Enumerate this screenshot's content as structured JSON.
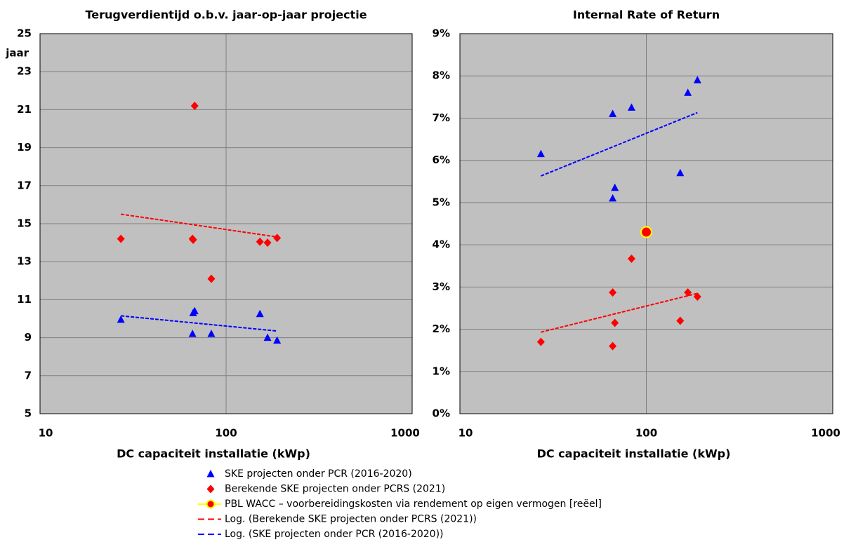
{
  "chart_data": [
    {
      "type": "scatter",
      "title": "Terugverdientijd o.b.v. jaar-op-jaar projectie",
      "xlabel": "DC capaciteit installatie (kWp)",
      "ylabel": "jaar",
      "xscale": "log",
      "xlim": [
        10,
        1000
      ],
      "xticks": [
        10,
        100,
        1000
      ],
      "ylim": [
        5,
        25
      ],
      "yticks": [
        5,
        7,
        9,
        11,
        13,
        15,
        17,
        19,
        21,
        23,
        25
      ],
      "grid": true,
      "background": "#c0c0c0",
      "series": [
        {
          "color": "#0000ff",
          "marker": "triangle",
          "x": [
            27.2,
            66,
            67.8,
            66.5,
            83.3,
            152,
            167,
            188
          ],
          "values": [
            9.95,
            9.2,
            10.4,
            10.3,
            9.2,
            10.25,
            9.0,
            8.85
          ]
        },
        {
          "color": "#ff0000",
          "marker": "diamond",
          "x": [
            27.2,
            66,
            66.5,
            67.8,
            83.3,
            152,
            167,
            188
          ],
          "values": [
            14.2,
            14.2,
            14.15,
            21.2,
            12.1,
            14.05,
            14.0,
            14.25
          ]
        },
        {
          "color": "#ff0000",
          "marker": "dashed",
          "x": [
            27.2,
            188
          ],
          "values": [
            15.5,
            14.3
          ]
        },
        {
          "color": "#0000ff",
          "marker": "dashed",
          "x": [
            27.2,
            188
          ],
          "values": [
            10.15,
            9.35
          ]
        }
      ]
    },
    {
      "type": "scatter",
      "title": "Internal Rate of Return",
      "xlabel": "DC capaciteit installatie (kWp)",
      "xscale": "log",
      "xlim": [
        10,
        1000
      ],
      "xticks": [
        10,
        100,
        1000
      ],
      "ylim": [
        0,
        9
      ],
      "yticks": [
        {
          "value": 0,
          "label": "0%"
        },
        {
          "value": 1,
          "label": "1%"
        },
        {
          "value": 2,
          "label": "2%"
        },
        {
          "value": 3,
          "label": "3%"
        },
        {
          "value": 4,
          "label": "4%"
        },
        {
          "value": 5,
          "label": "5%"
        },
        {
          "value": 6,
          "label": "6%"
        },
        {
          "value": 7,
          "label": "7%"
        },
        {
          "value": 8,
          "label": "8%"
        },
        {
          "value": 9,
          "label": "9%"
        }
      ],
      "grid": true,
      "background": "#c0c0c0",
      "series": [
        {
          "name": "SKE projecten onder PCR (2016-2020)",
          "color": "#0000ff",
          "marker": "triangle",
          "x": [
            27.2,
            66,
            66,
            67.8,
            83.3,
            152,
            167,
            188
          ],
          "values": [
            6.15,
            7.1,
            5.1,
            5.35,
            7.25,
            5.7,
            7.6,
            7.9
          ]
        },
        {
          "name": "Berekende SKE projecten onder PCRS (2021)",
          "color": "#ff0000",
          "marker": "diamond",
          "x": [
            27.2,
            66,
            66,
            67.8,
            83.3,
            152,
            167,
            188
          ],
          "values": [
            1.7,
            2.87,
            1.6,
            2.15,
            3.67,
            2.2,
            2.87,
            2.77
          ]
        },
        {
          "name": "PBL WACC – voorbereidingskosten via rendement op eigen vermogen [reëel]",
          "color": "#ff0000",
          "edgecolor": "#ffff00",
          "marker": "circle",
          "x": [
            100
          ],
          "values": [
            4.3
          ]
        },
        {
          "name": "Log. (Berekende SKE projecten onder PCRS (2021))",
          "color": "#ff0000",
          "marker": "dashed",
          "x": [
            27.2,
            188
          ],
          "values": [
            1.93,
            2.85
          ]
        },
        {
          "name": "Log. (SKE projecten onder PCR (2016-2020))",
          "color": "#0000ff",
          "marker": "dashed",
          "x": [
            27.2,
            188
          ],
          "values": [
            5.63,
            7.13
          ]
        }
      ]
    }
  ]
}
